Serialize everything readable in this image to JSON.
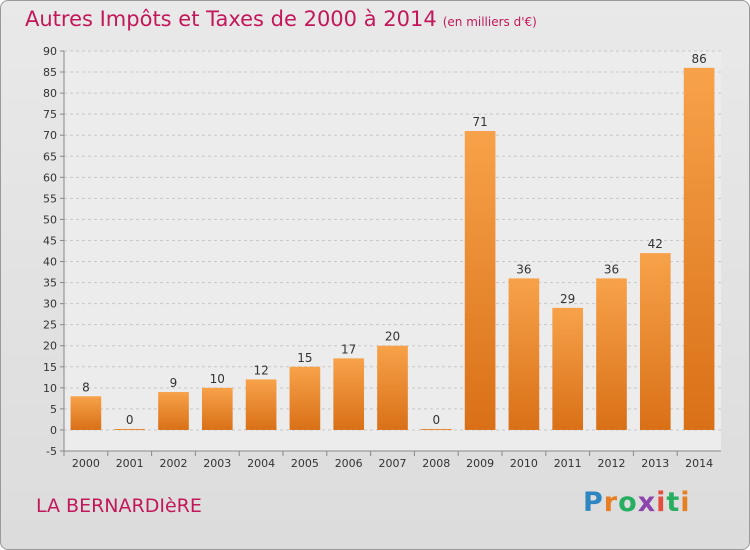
{
  "chart_data": {
    "type": "bar",
    "title": "Autres Impôts et Taxes de 2000 à 2014",
    "title_unit": "(en milliers d'€)",
    "categories": [
      "2000",
      "2001",
      "2002",
      "2003",
      "2004",
      "2005",
      "2006",
      "2007",
      "2008",
      "2009",
      "2010",
      "2011",
      "2012",
      "2013",
      "2014"
    ],
    "values": [
      8,
      0,
      9,
      10,
      12,
      15,
      17,
      20,
      0,
      71,
      36,
      29,
      36,
      42,
      86
    ],
    "ylim": [
      -5,
      90
    ],
    "yticks": [
      -5,
      0,
      5,
      10,
      15,
      20,
      25,
      30,
      35,
      40,
      45,
      50,
      55,
      60,
      65,
      70,
      75,
      80,
      85,
      90
    ],
    "grid": true,
    "colors": {
      "bar_light": "#f7a24a",
      "bar_dark": "#d97017",
      "title": "#c2185b"
    }
  },
  "commune": "LA BERNARDIèRE",
  "logo": {
    "letters": [
      {
        "ch": "P",
        "color": "#2e86c1"
      },
      {
        "ch": "r",
        "color": "#e67e22"
      },
      {
        "ch": "o",
        "color": "#27ae60"
      },
      {
        "ch": "x",
        "color": "#8e44ad"
      },
      {
        "ch": "i",
        "color": "#e74c3c"
      },
      {
        "ch": "t",
        "color": "#27ae60"
      },
      {
        "ch": "i",
        "color": "#e67e22"
      }
    ]
  }
}
